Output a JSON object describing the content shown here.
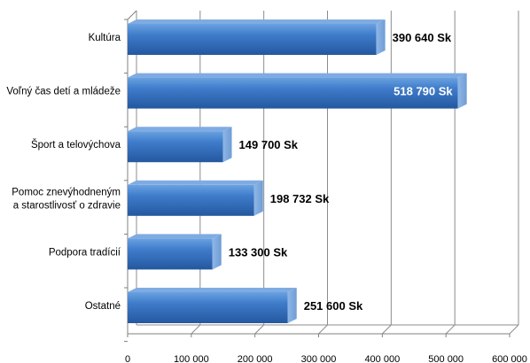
{
  "chart_data": {
    "type": "bar",
    "orientation": "horizontal",
    "categories": [
      "Kultúra",
      "Voľný čas detí a mládeže",
      "Šport a telovýchova",
      "Pomoc znevýhodneným a starostlivosť o zdravie",
      "Podpora tradícií",
      "Ostatné"
    ],
    "category_lines": [
      [
        "Kultúra"
      ],
      [
        "Voľný čas detí a mládeže"
      ],
      [
        "Šport a telovýchova"
      ],
      [
        "Pomoc znevýhodneným",
        "a starostlivosť o zdravie"
      ],
      [
        "Podpora tradícií"
      ],
      [
        "Ostatné"
      ]
    ],
    "values": [
      390640,
      518790,
      149700,
      198732,
      133300,
      251600
    ],
    "data_labels": [
      "390 640 Sk",
      "518 790 Sk",
      "149 700 Sk",
      "198 732 Sk",
      "133 300 Sk",
      "251 600 Sk"
    ],
    "xlim": [
      0,
      600000
    ],
    "x_ticks": [
      0,
      100000,
      200000,
      300000,
      400000,
      500000,
      600000
    ],
    "x_tick_labels": [
      "0",
      "100 000",
      "200 000",
      "300 000",
      "400 000",
      "500 000",
      "600 000"
    ],
    "title": "",
    "xlabel": "",
    "ylabel": "",
    "grid": "vertical",
    "legend": "none",
    "colors": {
      "bar_front": "#2e6cb8",
      "bar_front_light": "#5a95da",
      "bar_top": "#8ab4e8",
      "bar_side": "#9dbfe8",
      "grid": "#8c8c8c",
      "axis": "#808080",
      "label_on_bar": "#ffffff",
      "label_outside": "#000000"
    }
  }
}
